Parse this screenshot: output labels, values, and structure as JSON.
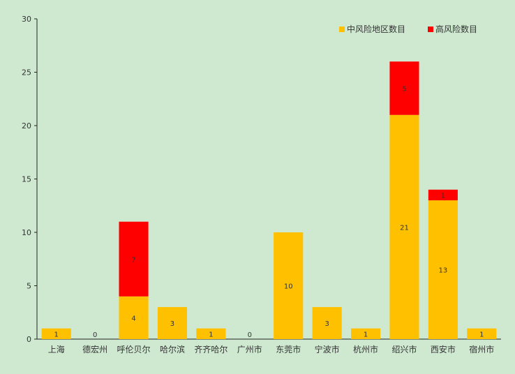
{
  "chart_data": {
    "type": "bar",
    "stacked": true,
    "categories": [
      "上海",
      "德宏州",
      "呼伦贝尔",
      "哈尔滨",
      "齐齐哈尔",
      "广州市",
      "东莞市",
      "宁波市",
      "杭州市",
      "绍兴市",
      "西安市",
      "宿州市"
    ],
    "series": [
      {
        "name": "中风险地区数目",
        "color": "#ffc000",
        "values": [
          1,
          0,
          4,
          3,
          1,
          0,
          10,
          3,
          1,
          21,
          13,
          1
        ]
      },
      {
        "name": "高风险数目",
        "color": "#ff0000",
        "values": [
          0,
          0,
          7,
          0,
          0,
          0,
          0,
          0,
          0,
          5,
          1,
          0
        ]
      }
    ],
    "ylim": [
      0,
      30
    ],
    "yticks": [
      0,
      5,
      10,
      15,
      20,
      25,
      30
    ],
    "legend": "top-right",
    "grid": false
  }
}
